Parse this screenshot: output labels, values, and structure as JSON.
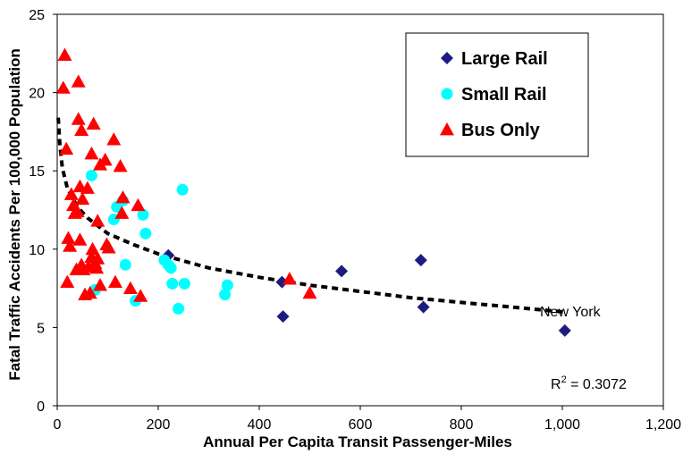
{
  "chart_data": {
    "type": "scatter",
    "xlabel": "Annual Per Capita Transit Passenger-Miles",
    "ylabel": "Fatal Traffic Accidents Per 100,000 Population",
    "xlim": [
      0,
      1200
    ],
    "ylim": [
      0,
      25
    ],
    "x_ticks": [
      "0",
      "200",
      "400",
      "600",
      "800",
      "1,000",
      "1,200"
    ],
    "y_ticks": [
      "0",
      "5",
      "10",
      "15",
      "20",
      "25"
    ],
    "legend_position": "top-right",
    "trendline": {
      "style": "dashed",
      "color": "#000000",
      "x": [
        2,
        5,
        10,
        20,
        40,
        60,
        80,
        100,
        150,
        200,
        300,
        400,
        500,
        600,
        700,
        800,
        900,
        1000
      ],
      "y": [
        18.4,
        16.8,
        15.2,
        13.9,
        12.7,
        12.0,
        11.5,
        11.0,
        10.3,
        9.7,
        8.8,
        8.2,
        7.7,
        7.3,
        6.9,
        6.6,
        6.3,
        6.0
      ]
    },
    "r2_label_prefix": "R",
    "r2_label_sup": "2",
    "r2_label_suffix": " = 0.3072",
    "annotation": {
      "text": "New York",
      "x": 1000,
      "y": 4.8
    },
    "series": [
      {
        "name": "Large Rail",
        "marker": "diamond",
        "color": "#1c1c80",
        "points": [
          [
            220,
            9.6
          ],
          [
            445,
            7.9
          ],
          [
            447,
            5.7
          ],
          [
            563,
            8.6
          ],
          [
            720,
            9.3
          ],
          [
            725,
            6.3
          ],
          [
            1005,
            4.8
          ]
        ]
      },
      {
        "name": "Small Rail",
        "marker": "circle",
        "color": "#00ffff",
        "points": [
          [
            68,
            14.7
          ],
          [
            112,
            11.9
          ],
          [
            118,
            12.7
          ],
          [
            130,
            13.1
          ],
          [
            135,
            9.0
          ],
          [
            155,
            6.7
          ],
          [
            170,
            12.2
          ],
          [
            175,
            11.0
          ],
          [
            212,
            9.3
          ],
          [
            220,
            9.0
          ],
          [
            225,
            8.8
          ],
          [
            228,
            7.8
          ],
          [
            240,
            6.2
          ],
          [
            248,
            13.8
          ],
          [
            252,
            7.8
          ],
          [
            332,
            7.1
          ],
          [
            337,
            7.7
          ],
          [
            75,
            7.4
          ]
        ]
      },
      {
        "name": "Bus Only",
        "marker": "triangle",
        "color": "#ff0000",
        "points": [
          [
            15,
            22.4
          ],
          [
            12,
            20.3
          ],
          [
            42,
            20.7
          ],
          [
            18,
            16.4
          ],
          [
            42,
            18.3
          ],
          [
            48,
            17.6
          ],
          [
            72,
            18.0
          ],
          [
            68,
            16.1
          ],
          [
            85,
            15.4
          ],
          [
            95,
            15.7
          ],
          [
            112,
            17.0
          ],
          [
            125,
            15.3
          ],
          [
            45,
            14.0
          ],
          [
            60,
            13.9
          ],
          [
            28,
            13.5
          ],
          [
            32,
            12.8
          ],
          [
            35,
            12.3
          ],
          [
            40,
            12.4
          ],
          [
            50,
            13.2
          ],
          [
            130,
            13.3
          ],
          [
            160,
            12.8
          ],
          [
            128,
            12.3
          ],
          [
            80,
            11.8
          ],
          [
            22,
            10.7
          ],
          [
            45,
            10.6
          ],
          [
            25,
            10.2
          ],
          [
            70,
            10.0
          ],
          [
            98,
            10.3
          ],
          [
            102,
            10.1
          ],
          [
            68,
            9.5
          ],
          [
            75,
            9.1
          ],
          [
            80,
            9.4
          ],
          [
            38,
            8.7
          ],
          [
            48,
            9.0
          ],
          [
            52,
            8.7
          ],
          [
            62,
            8.9
          ],
          [
            78,
            8.8
          ],
          [
            20,
            7.9
          ],
          [
            85,
            7.7
          ],
          [
            115,
            7.9
          ],
          [
            145,
            7.5
          ],
          [
            55,
            7.1
          ],
          [
            65,
            7.2
          ],
          [
            165,
            7.0
          ],
          [
            460,
            8.1
          ],
          [
            500,
            7.2
          ]
        ]
      }
    ]
  }
}
